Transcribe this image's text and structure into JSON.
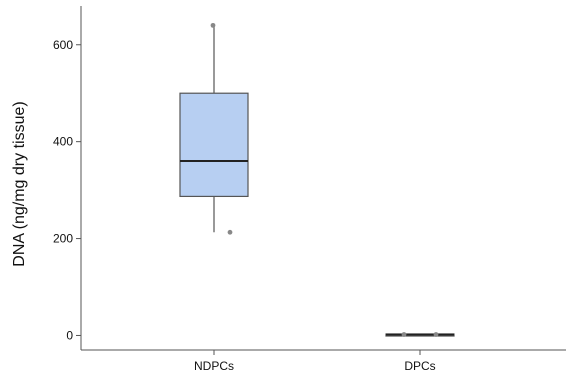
{
  "chart_data": {
    "type": "boxplot",
    "title": "",
    "xlabel": "",
    "ylabel": "DNA (ng/mg dry tissue)",
    "ylim": [
      -30,
      680
    ],
    "yticks": [
      0,
      200,
      400,
      600
    ],
    "grid": false,
    "categories": [
      "NDPCs",
      "DPCs"
    ],
    "series": [
      {
        "category": "NDPCs",
        "whisker_low": 213,
        "q1": 287,
        "median": 360,
        "q3": 500,
        "whisker_high": 640,
        "outliers": [
          213,
          640
        ],
        "color": "#b7cff2"
      },
      {
        "category": "DPCs",
        "whisker_low": 1,
        "q1": 1,
        "median": 2,
        "q3": 3,
        "whisker_high": 3,
        "outliers": [
          2,
          2
        ],
        "color": "#b7cff2"
      }
    ],
    "colors": {
      "box_fill": "#b7cff2",
      "box_stroke": "#555555",
      "axis": "#555555",
      "median": "#222222",
      "outlier": "#888888"
    }
  }
}
